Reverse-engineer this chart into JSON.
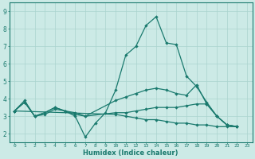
{
  "xlabel": "Humidex (Indice chaleur)",
  "bg_color": "#cceae6",
  "grid_color": "#aad4ce",
  "line_color": "#1a7a6e",
  "xlim": [
    -0.5,
    23.5
  ],
  "ylim": [
    1.5,
    9.5
  ],
  "yticks": [
    2,
    3,
    4,
    5,
    6,
    7,
    8,
    9
  ],
  "xticks": [
    0,
    1,
    2,
    3,
    4,
    5,
    6,
    7,
    8,
    9,
    10,
    11,
    12,
    13,
    14,
    15,
    16,
    17,
    18,
    19,
    20,
    21,
    22,
    23
  ],
  "lines": [
    {
      "x": [
        0,
        1,
        2,
        3,
        4,
        5,
        6,
        7,
        8,
        9,
        10,
        11,
        12,
        13,
        14,
        15,
        16,
        17,
        18,
        19,
        20,
        21,
        22
      ],
      "y": [
        3.3,
        3.9,
        3.0,
        3.1,
        3.4,
        3.3,
        3.0,
        1.8,
        2.6,
        3.2,
        4.5,
        6.5,
        7.0,
        8.2,
        8.7,
        7.2,
        7.1,
        5.3,
        4.7,
        3.8,
        3.0,
        2.5,
        2.4
      ]
    },
    {
      "x": [
        0,
        1,
        2,
        3,
        4,
        5,
        6,
        7,
        10,
        11,
        12,
        13,
        14,
        15,
        16,
        17,
        18,
        19,
        20,
        21,
        22
      ],
      "y": [
        3.3,
        3.8,
        3.0,
        3.2,
        3.5,
        3.3,
        3.2,
        3.0,
        3.9,
        4.1,
        4.3,
        4.5,
        4.6,
        4.5,
        4.3,
        4.2,
        4.8,
        3.7,
        3.0,
        2.5,
        2.4
      ]
    },
    {
      "x": [
        0,
        1,
        2,
        3,
        4,
        5,
        6,
        7,
        10,
        11,
        12,
        13,
        14,
        15,
        16,
        17,
        18,
        19,
        20,
        21,
        22
      ],
      "y": [
        3.3,
        3.8,
        3.0,
        3.2,
        3.5,
        3.3,
        3.1,
        3.0,
        3.2,
        3.2,
        3.3,
        3.4,
        3.5,
        3.5,
        3.5,
        3.6,
        3.7,
        3.7,
        3.0,
        2.5,
        2.4
      ]
    },
    {
      "x": [
        0,
        10,
        11,
        12,
        13,
        14,
        15,
        16,
        17,
        18,
        19,
        20,
        21,
        22
      ],
      "y": [
        3.3,
        3.1,
        3.0,
        2.9,
        2.8,
        2.8,
        2.7,
        2.6,
        2.6,
        2.5,
        2.5,
        2.4,
        2.4,
        2.4
      ]
    }
  ]
}
